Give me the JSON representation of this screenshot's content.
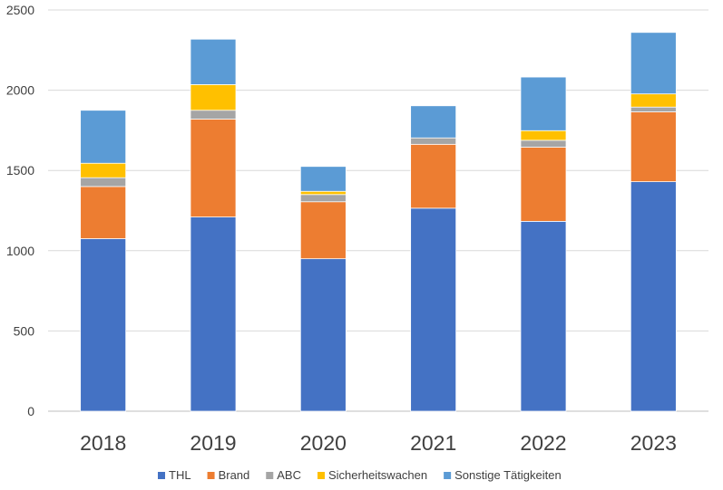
{
  "chart_data": {
    "type": "bar",
    "stacked": true,
    "categories": [
      "2018",
      "2019",
      "2020",
      "2021",
      "2022",
      "2023"
    ],
    "series": [
      {
        "name": "THL",
        "color": "#4472C4",
        "values": [
          1075,
          1210,
          950,
          1265,
          1183,
          1430
        ]
      },
      {
        "name": "Brand",
        "color": "#ED7D31",
        "values": [
          325,
          610,
          355,
          398,
          462,
          435
        ]
      },
      {
        "name": "ABC",
        "color": "#A5A5A5",
        "values": [
          55,
          55,
          45,
          40,
          43,
          30
        ]
      },
      {
        "name": "Sicherheitswachen",
        "color": "#FFC000",
        "values": [
          90,
          160,
          20,
          0,
          60,
          82
        ]
      },
      {
        "name": "Sonstige Tätigkeiten",
        "color": "#5B9BD5",
        "values": [
          330,
          283,
          155,
          200,
          334,
          383
        ]
      }
    ],
    "yticks": [
      "0",
      "500",
      "1000",
      "1500",
      "2000",
      "2500"
    ],
    "ylim": [
      0,
      2500
    ],
    "title": "",
    "xlabel": "",
    "ylabel": "",
    "grid": true,
    "legend_position": "bottom"
  }
}
